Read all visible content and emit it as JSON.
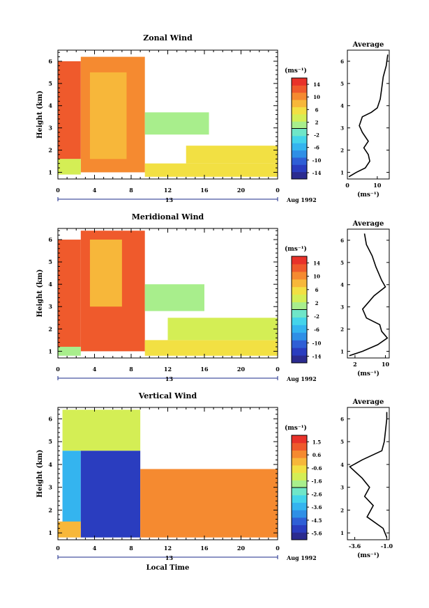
{
  "chart_data": [
    {
      "type": "heatmap",
      "title": "Zonal Wind",
      "ylabel": "Height (km)",
      "xlabel": "",
      "x_ticks": [
        "0",
        "4",
        "8",
        "12",
        "16",
        "20",
        "0"
      ],
      "date_label": "13",
      "month_label": "Aug 1992",
      "y_ticks": [
        "1",
        "2",
        "3",
        "4",
        "5",
        "6"
      ],
      "xlim": [
        0,
        24
      ],
      "ylim": [
        0.7,
        6.5
      ],
      "colorbar_unit": "(ms⁻¹)",
      "colorbar_ticks": [
        "14",
        "10",
        "6",
        "2",
        "-2",
        "-6",
        "-10",
        "-14"
      ],
      "colorbar_range": [
        -16,
        16
      ],
      "regions": [
        {
          "t0": 0,
          "t1": 2.5,
          "z0": 1.6,
          "z1": 6.0,
          "value": 12
        },
        {
          "t0": 2.5,
          "t1": 9.5,
          "z0": 1.0,
          "z1": 6.2,
          "value": 10
        },
        {
          "t0": 3.5,
          "t1": 7.5,
          "z0": 1.6,
          "z1": 5.5,
          "value": 7
        },
        {
          "t0": 9.5,
          "t1": 16.5,
          "z0": 2.7,
          "z1": 3.7,
          "value": 1
        },
        {
          "t0": 9.5,
          "t1": 24,
          "z0": 0.8,
          "z1": 1.4,
          "value": 5
        },
        {
          "t0": 14,
          "t1": 24,
          "z0": 1.4,
          "z1": 2.2,
          "value": 6
        },
        {
          "t0": 0,
          "t1": 2.5,
          "z0": 0.9,
          "z1": 1.6,
          "value": 4
        }
      ],
      "profile": {
        "title": "Average",
        "xlabel": "(ms⁻¹)",
        "x_ticks": [
          "0",
          "10"
        ],
        "xlim": [
          0,
          14
        ],
        "points": [
          [
            0.5,
            0.8
          ],
          [
            3,
            1.0
          ],
          [
            6,
            1.2
          ],
          [
            7.5,
            1.5
          ],
          [
            7,
            1.8
          ],
          [
            5.5,
            2.1
          ],
          [
            7,
            2.4
          ],
          [
            5,
            2.8
          ],
          [
            4,
            3.1
          ],
          [
            5,
            3.5
          ],
          [
            8,
            3.7
          ],
          [
            10,
            3.9
          ],
          [
            11,
            4.3
          ],
          [
            11.5,
            4.8
          ],
          [
            12,
            5.3
          ],
          [
            13,
            5.8
          ],
          [
            13.5,
            6.3
          ]
        ]
      }
    },
    {
      "type": "heatmap",
      "title": "Meridional Wind",
      "ylabel": "Height (km)",
      "xlabel": "",
      "x_ticks": [
        "0",
        "4",
        "8",
        "12",
        "16",
        "20",
        "0"
      ],
      "date_label": "13",
      "month_label": "Aug 1992",
      "y_ticks": [
        "1",
        "2",
        "3",
        "4",
        "5",
        "6"
      ],
      "xlim": [
        0,
        24
      ],
      "ylim": [
        0.7,
        6.5
      ],
      "colorbar_unit": "(ms⁻¹)",
      "colorbar_ticks": [
        "14",
        "10",
        "6",
        "2",
        "-2",
        "-6",
        "-10",
        "-14"
      ],
      "colorbar_range": [
        -16,
        16
      ],
      "regions": [
        {
          "t0": 0,
          "t1": 2.5,
          "z0": 1.2,
          "z1": 6.0,
          "value": 12
        },
        {
          "t0": 2.5,
          "t1": 9.5,
          "z0": 1.0,
          "z1": 6.4,
          "value": 12
        },
        {
          "t0": 3.5,
          "t1": 7.0,
          "z0": 3.0,
          "z1": 6.0,
          "value": 8
        },
        {
          "t0": 9.5,
          "t1": 16.0,
          "z0": 2.8,
          "z1": 4.0,
          "value": 1
        },
        {
          "t0": 9.5,
          "t1": 24,
          "z0": 0.8,
          "z1": 1.5,
          "value": 5
        },
        {
          "t0": 12,
          "t1": 24,
          "z0": 1.5,
          "z1": 2.5,
          "value": 3
        },
        {
          "t0": 0,
          "t1": 2.5,
          "z0": 0.8,
          "z1": 1.2,
          "value": 2
        }
      ],
      "profile": {
        "title": "Average",
        "xlabel": "(ms⁻¹)",
        "x_ticks": [
          "2",
          "10"
        ],
        "xlim": [
          0,
          11
        ],
        "points": [
          [
            0.5,
            0.8
          ],
          [
            4,
            1.0
          ],
          [
            8,
            1.3
          ],
          [
            10.5,
            1.6
          ],
          [
            9,
            1.9
          ],
          [
            8.5,
            2.2
          ],
          [
            5,
            2.5
          ],
          [
            4,
            2.9
          ],
          [
            5.5,
            3.2
          ],
          [
            7,
            3.5
          ],
          [
            10,
            3.9
          ],
          [
            9,
            4.2
          ],
          [
            7.5,
            4.8
          ],
          [
            6.5,
            5.3
          ],
          [
            5,
            5.8
          ],
          [
            4.5,
            6.3
          ]
        ]
      }
    },
    {
      "type": "heatmap",
      "title": "Vertical Wind",
      "ylabel": "Height (km)",
      "xlabel": "Local Time",
      "x_ticks": [
        "0",
        "4",
        "8",
        "12",
        "16",
        "20",
        "0"
      ],
      "date_label": "13",
      "month_label": "Aug 1992",
      "y_ticks": [
        "1",
        "2",
        "3",
        "4",
        "5",
        "6"
      ],
      "xlim": [
        0,
        24
      ],
      "ylim": [
        0.7,
        6.5
      ],
      "colorbar_unit": "(ms⁻¹)",
      "colorbar_ticks": [
        "1.5",
        "0.6",
        "-0.6",
        "-1.6",
        "-2.6",
        "-3.6",
        "-4.5",
        "-5.6"
      ],
      "colorbar_range": [
        -6.0,
        2.0
      ],
      "regions": [
        {
          "t0": 0.5,
          "t1": 9.0,
          "z0": 4.6,
          "z1": 6.4,
          "value": -1.2
        },
        {
          "t0": 0.5,
          "t1": 2.5,
          "z0": 1.2,
          "z1": 4.6,
          "value": -3.2
        },
        {
          "t0": 2.5,
          "t1": 9.0,
          "z0": 0.8,
          "z1": 4.6,
          "value": -5.4
        },
        {
          "t0": 9.0,
          "t1": 24,
          "z0": 0.8,
          "z1": 3.8,
          "value": 0.4
        },
        {
          "t0": 0,
          "t1": 2.5,
          "z0": 0.8,
          "z1": 1.5,
          "value": 0.2
        }
      ],
      "profile": {
        "title": "Average",
        "xlabel": "(ms⁻¹)",
        "x_ticks": [
          "-3.6",
          "-1.0"
        ],
        "xlim": [
          -4.2,
          -0.8
        ],
        "points": [
          [
            -1.0,
            0.8
          ],
          [
            -1.3,
            1.2
          ],
          [
            -2.6,
            1.7
          ],
          [
            -2.1,
            2.2
          ],
          [
            -2.8,
            2.6
          ],
          [
            -2.4,
            3.0
          ],
          [
            -3.0,
            3.4
          ],
          [
            -4.0,
            3.9
          ],
          [
            -3.0,
            4.2
          ],
          [
            -1.4,
            4.6
          ],
          [
            -1.2,
            5.0
          ],
          [
            -1.1,
            5.5
          ],
          [
            -1.0,
            6.0
          ],
          [
            -1.0,
            6.3
          ]
        ]
      }
    }
  ]
}
